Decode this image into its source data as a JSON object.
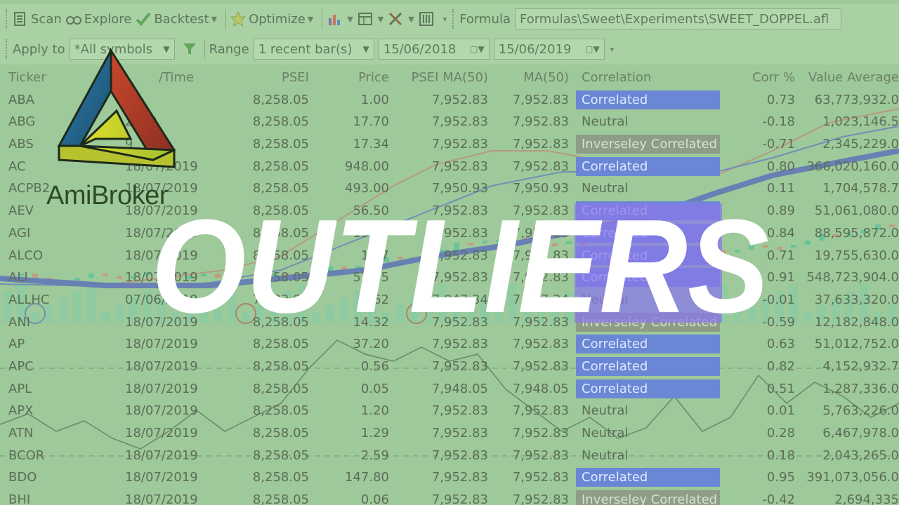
{
  "toolbar1": {
    "scan": "Scan",
    "explore": "Explore",
    "backtest": "Backtest",
    "optimize": "Optimize",
    "formula_label": "Formula",
    "formula_path": "Formulas\\Sweet\\Experiments\\SWEET_DOPPEL.afl"
  },
  "toolbar2": {
    "apply_to_label": "Apply to",
    "apply_to_value": "*All symbols",
    "range_label": "Range",
    "range_value": "1 recent bar(s)",
    "date_from": "15/06/2018",
    "date_to": "15/06/2019"
  },
  "table": {
    "headers": [
      "Ticker",
      "/Time",
      "PSEI",
      "Price",
      "PSEI MA(50)",
      "MA(50)",
      "Correlation",
      "Corr %",
      "Value Average"
    ],
    "rows": [
      {
        "ticker": "ABA",
        "date": "",
        "psei": "8,258.05",
        "price": "1.00",
        "pma": "7,952.83",
        "ma": "7,952.83",
        "corr": "Correlated",
        "pct": "0.73",
        "val": "63,773,932.0"
      },
      {
        "ticker": "ABG",
        "date": "2019",
        "psei": "8,258.05",
        "price": "17.70",
        "pma": "7,952.83",
        "ma": "7,952.83",
        "corr": "Neutral",
        "pct": "-0.18",
        "val": "1,023,146.5"
      },
      {
        "ticker": "ABS",
        "date": "9",
        "psei": "8,258.05",
        "price": "17.34",
        "pma": "7,952.83",
        "ma": "7,952.83",
        "corr": "Inverseley Correlated",
        "pct": "-0.71",
        "val": "2,345,229.0"
      },
      {
        "ticker": "AC",
        "date": "18/07/2019",
        "psei": "8,258.05",
        "price": "948.00",
        "pma": "7,952.83",
        "ma": "7,952.83",
        "corr": "Correlated",
        "pct": "0.80",
        "val": "366,020,160.0"
      },
      {
        "ticker": "ACPB2",
        "date": "18/07/2019",
        "psei": "8,258.05",
        "price": "493.00",
        "pma": "7,950.93",
        "ma": "7,950.93",
        "corr": "Neutral",
        "pct": "0.11",
        "val": "1,704,578.7"
      },
      {
        "ticker": "AEV",
        "date": "18/07/2019",
        "psei": "8,258.05",
        "price": "56.50",
        "pma": "7,952.83",
        "ma": "7,952.83",
        "corr": "Correlated",
        "pct": "0.89",
        "val": "51,061,080.0"
      },
      {
        "ticker": "AGI",
        "date": "18/07/2019",
        "psei": "8,258.05",
        "price": "15.58",
        "pma": "7,952.83",
        "ma": "7,952.83",
        "corr": "Correlated",
        "pct": "0.84",
        "val": "88,595,872.0"
      },
      {
        "ticker": "ALCO",
        "date": "18/07/2019",
        "psei": "8,258.05",
        "price": "1.07",
        "pma": "7,952.83",
        "ma": "7,952.83",
        "corr": "Correlated",
        "pct": "0.71",
        "val": "19,755,630.0"
      },
      {
        "ticker": "ALI",
        "date": "18/07/2019",
        "psei": "8,258.05",
        "price": "52.35",
        "pma": "7,952.83",
        "ma": "7,952.83",
        "corr": "Correlated",
        "pct": "0.91",
        "val": "548,723,904.0"
      },
      {
        "ticker": "ALLHC",
        "date": "07/06/2019",
        "psei": "7,983.98",
        "price": "3.62",
        "pma": "7,847.34",
        "ma": "7,847.34",
        "corr": "Neutral",
        "pct": "-0.01",
        "val": "37,633,320.0"
      },
      {
        "ticker": "ANI",
        "date": "18/07/2019",
        "psei": "8,258.05",
        "price": "14.32",
        "pma": "7,952.83",
        "ma": "7,952.83",
        "corr": "Inverseley Correlated",
        "pct": "-0.59",
        "val": "12,182,848.0"
      },
      {
        "ticker": "AP",
        "date": "18/07/2019",
        "psei": "8,258.05",
        "price": "37.20",
        "pma": "7,952.83",
        "ma": "7,952.83",
        "corr": "Correlated",
        "pct": "0.63",
        "val": "51,012,752.0"
      },
      {
        "ticker": "APC",
        "date": "18/07/2019",
        "psei": "8,258.05",
        "price": "0.56",
        "pma": "7,952.83",
        "ma": "7,952.83",
        "corr": "Correlated",
        "pct": "0.82",
        "val": "4,152,932.7"
      },
      {
        "ticker": "APL",
        "date": "18/07/2019",
        "psei": "8,258.05",
        "price": "0.05",
        "pma": "7,948.05",
        "ma": "7,948.05",
        "corr": "Correlated",
        "pct": "0.51",
        "val": "1,287,336.0"
      },
      {
        "ticker": "APX",
        "date": "18/07/2019",
        "psei": "8,258.05",
        "price": "1.20",
        "pma": "7,952.83",
        "ma": "7,952.83",
        "corr": "Neutral",
        "pct": "0.01",
        "val": "5,763,226.0"
      },
      {
        "ticker": "ATN",
        "date": "18/07/2019",
        "psei": "8,258.05",
        "price": "1.29",
        "pma": "7,952.83",
        "ma": "7,952.83",
        "corr": "Neutral",
        "pct": "0.28",
        "val": "6,467,978.0"
      },
      {
        "ticker": "BCOR",
        "date": "18/07/2019",
        "psei": "8,258.05",
        "price": "2.59",
        "pma": "7,952.83",
        "ma": "7,952.83",
        "corr": "Neutral",
        "pct": "0.18",
        "val": "2,043,265.0"
      },
      {
        "ticker": "BDO",
        "date": "18/07/2019",
        "psei": "8,258.05",
        "price": "147.80",
        "pma": "7,952.83",
        "ma": "7,952.83",
        "corr": "Correlated",
        "pct": "0.95",
        "val": "391,073,056.0"
      },
      {
        "ticker": "BHI",
        "date": "18/07/2019",
        "psei": "8,258.05",
        "price": "0.06",
        "pma": "7,952.83",
        "ma": "7,952.83",
        "corr": "Inverseley Correlated",
        "pct": "-0.42",
        "val": "2,694,335"
      }
    ]
  },
  "logo": {
    "text": "AmiBroker"
  },
  "overlay": {
    "word": "OUTLIERS"
  },
  "colors": {
    "correlated": "#6a87d6",
    "inverse": "#8e9d86",
    "background": "#9ec99a",
    "overlay_text": "#ffffff",
    "overlay_highlight": "#8a78e8"
  }
}
